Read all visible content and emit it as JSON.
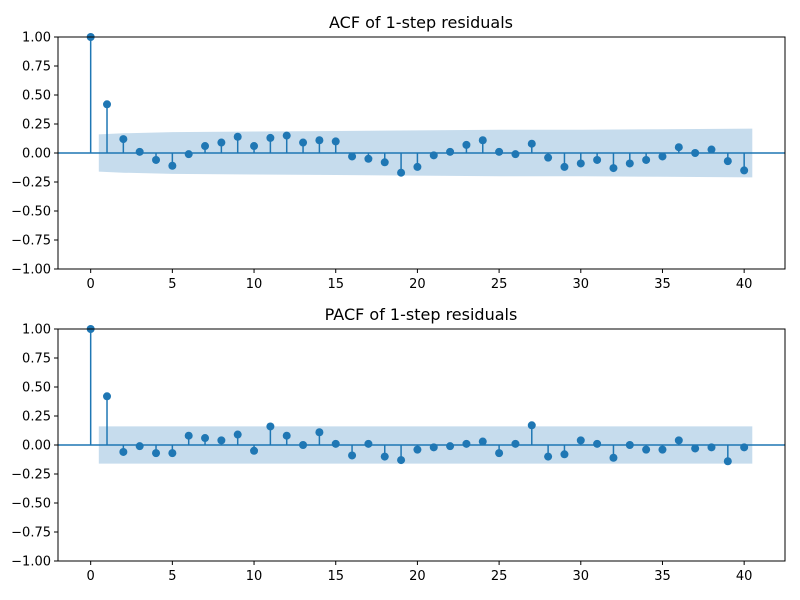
{
  "chart_data": [
    {
      "type": "stem",
      "title": "ACF of 1-step residuals",
      "xlabel": "",
      "ylabel": "",
      "xlim": [
        -2,
        42.5
      ],
      "ylim": [
        -1.0,
        1.0
      ],
      "xticks": [
        0,
        5,
        10,
        15,
        20,
        25,
        30,
        35,
        40
      ],
      "yticks": [
        -1.0,
        -0.75,
        -0.5,
        -0.25,
        0.0,
        0.25,
        0.5,
        0.75,
        1.0
      ],
      "xtick_labels": [
        "0",
        "5",
        "10",
        "15",
        "20",
        "25",
        "30",
        "35",
        "40"
      ],
      "ytick_labels": [
        "−1.00",
        "−0.75",
        "−0.50",
        "−0.25",
        "0.00",
        "0.25",
        "0.50",
        "0.75",
        "1.00"
      ],
      "grid": false,
      "lags": [
        0,
        1,
        2,
        3,
        4,
        5,
        6,
        7,
        8,
        9,
        10,
        11,
        12,
        13,
        14,
        15,
        16,
        17,
        18,
        19,
        20,
        21,
        22,
        23,
        24,
        25,
        26,
        27,
        28,
        29,
        30,
        31,
        32,
        33,
        34,
        35,
        36,
        37,
        38,
        39,
        40
      ],
      "values": [
        1.0,
        0.42,
        0.12,
        0.01,
        -0.06,
        -0.11,
        -0.01,
        0.06,
        0.09,
        0.14,
        0.06,
        0.13,
        0.15,
        0.09,
        0.11,
        0.1,
        -0.03,
        -0.05,
        -0.08,
        -0.17,
        -0.12,
        -0.02,
        0.01,
        0.07,
        0.11,
        0.01,
        -0.01,
        0.08,
        -0.04,
        -0.12,
        -0.09,
        -0.06,
        -0.13,
        -0.09,
        -0.06,
        -0.03,
        0.05,
        0.0,
        0.03,
        -0.07,
        -0.15
      ],
      "confidence_band": {
        "x": [
          0.5,
          2,
          5,
          10,
          15,
          20,
          25,
          30,
          35,
          40.5
        ],
        "upper": [
          0.16,
          0.17,
          0.18,
          0.185,
          0.19,
          0.195,
          0.2,
          0.2,
          0.205,
          0.21
        ],
        "lower": [
          -0.16,
          -0.17,
          -0.18,
          -0.185,
          -0.19,
          -0.195,
          -0.2,
          -0.2,
          -0.205,
          -0.21
        ]
      },
      "colors": {
        "stem": "#1f77b4",
        "band": "#aecde6"
      }
    },
    {
      "type": "stem",
      "title": "PACF of 1-step residuals",
      "xlabel": "",
      "ylabel": "",
      "xlim": [
        -2,
        42.5
      ],
      "ylim": [
        -1.0,
        1.0
      ],
      "xticks": [
        0,
        5,
        10,
        15,
        20,
        25,
        30,
        35,
        40
      ],
      "yticks": [
        -1.0,
        -0.75,
        -0.5,
        -0.25,
        0.0,
        0.25,
        0.5,
        0.75,
        1.0
      ],
      "xtick_labels": [
        "0",
        "5",
        "10",
        "15",
        "20",
        "25",
        "30",
        "35",
        "40"
      ],
      "ytick_labels": [
        "−1.00",
        "−0.75",
        "−0.50",
        "−0.25",
        "0.00",
        "0.25",
        "0.50",
        "0.75",
        "1.00"
      ],
      "grid": false,
      "lags": [
        0,
        1,
        2,
        3,
        4,
        5,
        6,
        7,
        8,
        9,
        10,
        11,
        12,
        13,
        14,
        15,
        16,
        17,
        18,
        19,
        20,
        21,
        22,
        23,
        24,
        25,
        26,
        27,
        28,
        29,
        30,
        31,
        32,
        33,
        34,
        35,
        36,
        37,
        38,
        39,
        40
      ],
      "values": [
        1.0,
        0.42,
        -0.06,
        -0.01,
        -0.07,
        -0.07,
        0.08,
        0.06,
        0.04,
        0.09,
        -0.05,
        0.16,
        0.08,
        0.0,
        0.11,
        0.01,
        -0.09,
        0.01,
        -0.1,
        -0.13,
        -0.04,
        -0.02,
        -0.01,
        0.01,
        0.03,
        -0.07,
        0.01,
        0.17,
        -0.1,
        -0.08,
        0.04,
        0.01,
        -0.11,
        0.0,
        -0.04,
        -0.04,
        0.04,
        -0.03,
        -0.02,
        -0.14,
        -0.02
      ],
      "confidence_band": {
        "x": [
          0.5,
          40.5
        ],
        "upper": [
          0.16,
          0.16
        ],
        "lower": [
          -0.16,
          -0.16
        ]
      },
      "colors": {
        "stem": "#1f77b4",
        "band": "#aecde6"
      }
    }
  ]
}
